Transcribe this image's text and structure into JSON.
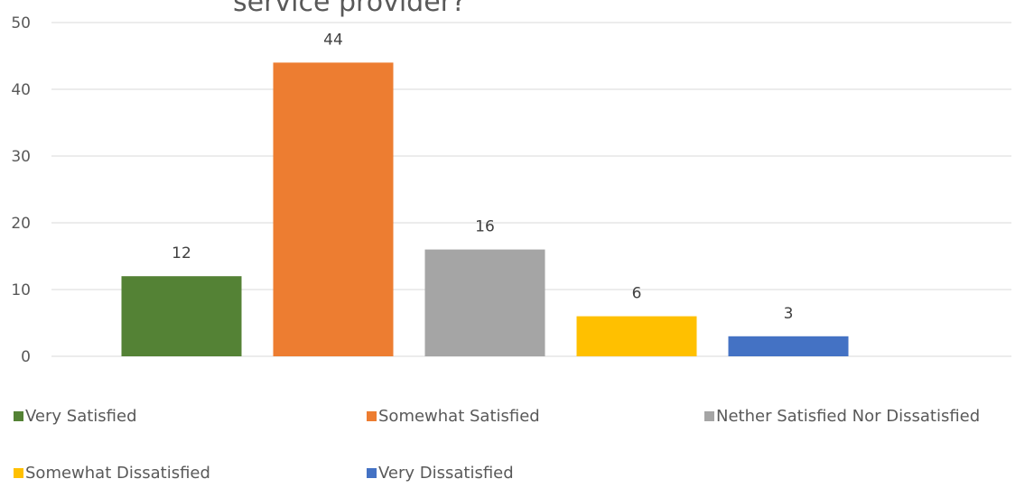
{
  "chart_data": {
    "type": "bar",
    "title": "service provider?",
    "xlabel": "",
    "ylabel": "",
    "ylim": [
      0,
      50
    ],
    "yticks": [
      0,
      10,
      20,
      30,
      40,
      50
    ],
    "grid": true,
    "legend_position": "bottom",
    "series": [
      {
        "name": "Very Satisfied",
        "value": 12,
        "color": "#548235"
      },
      {
        "name": "Somewhat Satisfied",
        "value": 44,
        "color": "#ed7d31"
      },
      {
        "name": "Nether Satisfied Nor Dissatisfied",
        "value": 16,
        "color": "#a5a5a5"
      },
      {
        "name": "Somewhat Dissatisfied",
        "value": 6,
        "color": "#ffc000"
      },
      {
        "name": "Very Dissatisfied",
        "value": 3,
        "color": "#4472c4"
      }
    ]
  }
}
